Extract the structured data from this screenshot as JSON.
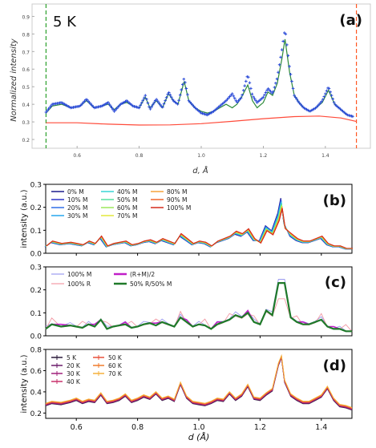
{
  "chart_data": [
    {
      "id": "a",
      "type": "scatter+line",
      "panel_label": "(a)",
      "annotation": "5 K",
      "xlabel": "d, Å",
      "ylabel": "Normalized intensity",
      "xlim": [
        0.455,
        1.545
      ],
      "ylim": [
        0.15,
        0.97
      ],
      "xticks": [
        0.6,
        0.8,
        1.0,
        1.2,
        1.4
      ],
      "xtick_labels": [
        "0.6",
        "0.8",
        "1.0",
        "1.2",
        "1.4"
      ],
      "yticks": [
        0.2,
        0.3,
        0.4,
        0.5,
        0.6,
        0.7,
        0.8,
        0.9
      ],
      "ytick_labels": [
        "0.2",
        "0.3",
        "0.4",
        "0.5",
        "0.6",
        "0.7",
        "0.8",
        "0.9"
      ],
      "vlines": [
        {
          "x": 0.5,
          "color": "#2ca02c"
        },
        {
          "x": 1.5,
          "color": "#ff5722"
        }
      ],
      "series": [
        {
          "role": "observed",
          "color": "#2b4bd8",
          "style": "crosses",
          "points": [
            [
              0.5,
              0.355
            ],
            [
              0.52,
              0.4
            ],
            [
              0.55,
              0.41
            ],
            [
              0.58,
              0.38
            ],
            [
              0.61,
              0.39
            ],
            [
              0.63,
              0.43
            ],
            [
              0.655,
              0.38
            ],
            [
              0.68,
              0.39
            ],
            [
              0.7,
              0.41
            ],
            [
              0.72,
              0.36
            ],
            [
              0.74,
              0.4
            ],
            [
              0.76,
              0.42
            ],
            [
              0.78,
              0.39
            ],
            [
              0.8,
              0.38
            ],
            [
              0.82,
              0.45
            ],
            [
              0.835,
              0.37
            ],
            [
              0.855,
              0.43
            ],
            [
              0.875,
              0.38
            ],
            [
              0.895,
              0.47
            ],
            [
              0.91,
              0.42
            ],
            [
              0.925,
              0.4
            ],
            [
              0.945,
              0.55
            ],
            [
              0.96,
              0.42
            ],
            [
              0.98,
              0.38
            ],
            [
              1.0,
              0.35
            ],
            [
              1.02,
              0.34
            ],
            [
              1.04,
              0.36
            ],
            [
              1.06,
              0.39
            ],
            [
              1.08,
              0.42
            ],
            [
              1.1,
              0.46
            ],
            [
              1.115,
              0.41
            ],
            [
              1.13,
              0.44
            ],
            [
              1.15,
              0.57
            ],
            [
              1.165,
              0.45
            ],
            [
              1.18,
              0.41
            ],
            [
              1.2,
              0.44
            ],
            [
              1.215,
              0.49
            ],
            [
              1.23,
              0.46
            ],
            [
              1.245,
              0.55
            ],
            [
              1.26,
              0.71
            ],
            [
              1.27,
              0.83
            ],
            [
              1.285,
              0.6
            ],
            [
              1.3,
              0.45
            ],
            [
              1.315,
              0.41
            ],
            [
              1.33,
              0.38
            ],
            [
              1.35,
              0.36
            ],
            [
              1.37,
              0.38
            ],
            [
              1.39,
              0.42
            ],
            [
              1.41,
              0.5
            ],
            [
              1.43,
              0.4
            ],
            [
              1.45,
              0.37
            ],
            [
              1.47,
              0.34
            ],
            [
              1.49,
              0.33
            ]
          ]
        },
        {
          "role": "fit",
          "color": "#2e8b3a",
          "style": "line",
          "points": [
            [
              0.5,
              0.35
            ],
            [
              0.52,
              0.39
            ],
            [
              0.55,
              0.4
            ],
            [
              0.58,
              0.38
            ],
            [
              0.61,
              0.39
            ],
            [
              0.63,
              0.42
            ],
            [
              0.655,
              0.38
            ],
            [
              0.68,
              0.39
            ],
            [
              0.7,
              0.4
            ],
            [
              0.72,
              0.37
            ],
            [
              0.74,
              0.4
            ],
            [
              0.76,
              0.41
            ],
            [
              0.78,
              0.39
            ],
            [
              0.8,
              0.38
            ],
            [
              0.82,
              0.44
            ],
            [
              0.835,
              0.38
            ],
            [
              0.855,
              0.42
            ],
            [
              0.875,
              0.38
            ],
            [
              0.895,
              0.46
            ],
            [
              0.91,
              0.42
            ],
            [
              0.925,
              0.4
            ],
            [
              0.945,
              0.53
            ],
            [
              0.96,
              0.42
            ],
            [
              0.98,
              0.38
            ],
            [
              1.0,
              0.36
            ],
            [
              1.02,
              0.35
            ],
            [
              1.04,
              0.36
            ],
            [
              1.06,
              0.38
            ],
            [
              1.08,
              0.4
            ],
            [
              1.1,
              0.38
            ],
            [
              1.115,
              0.4
            ],
            [
              1.13,
              0.44
            ],
            [
              1.15,
              0.51
            ],
            [
              1.165,
              0.42
            ],
            [
              1.18,
              0.38
            ],
            [
              1.2,
              0.41
            ],
            [
              1.215,
              0.47
            ],
            [
              1.23,
              0.45
            ],
            [
              1.245,
              0.52
            ],
            [
              1.26,
              0.66
            ],
            [
              1.27,
              0.77
            ],
            [
              1.285,
              0.58
            ],
            [
              1.3,
              0.45
            ],
            [
              1.315,
              0.41
            ],
            [
              1.33,
              0.38
            ],
            [
              1.35,
              0.36
            ],
            [
              1.37,
              0.38
            ],
            [
              1.39,
              0.41
            ],
            [
              1.41,
              0.48
            ],
            [
              1.43,
              0.4
            ],
            [
              1.45,
              0.37
            ],
            [
              1.47,
              0.34
            ],
            [
              1.49,
              0.33
            ]
          ]
        },
        {
          "role": "background",
          "color": "#ff4b3a",
          "style": "line",
          "points": [
            [
              0.5,
              0.295
            ],
            [
              0.6,
              0.295
            ],
            [
              0.7,
              0.287
            ],
            [
              0.8,
              0.282
            ],
            [
              0.9,
              0.283
            ],
            [
              1.0,
              0.29
            ],
            [
              1.1,
              0.303
            ],
            [
              1.2,
              0.318
            ],
            [
              1.3,
              0.33
            ],
            [
              1.38,
              0.333
            ],
            [
              1.45,
              0.322
            ],
            [
              1.5,
              0.302
            ]
          ]
        }
      ]
    },
    {
      "id": "b",
      "type": "line",
      "panel_label": "(b)",
      "ylabel": "intensity (a.u.)",
      "xlim": [
        0.5,
        1.5
      ],
      "ylim": [
        0.0,
        0.3
      ],
      "yticks": [
        0.0,
        0.1,
        0.2,
        0.3
      ],
      "ytick_labels": [
        "0.0",
        "0.1",
        "0.2",
        "0.3"
      ],
      "legend_position": "top-left",
      "legend": [
        {
          "label": "0% M",
          "color": "#1a1a8c"
        },
        {
          "label": "10% M",
          "color": "#2d34c8"
        },
        {
          "label": "20% M",
          "color": "#2f6fe8"
        },
        {
          "label": "30% M",
          "color": "#25a5ee"
        },
        {
          "label": "40% M",
          "color": "#38d4d4"
        },
        {
          "label": "50% M",
          "color": "#55e0a0"
        },
        {
          "label": "60% M",
          "color": "#9ae85a"
        },
        {
          "label": "70% M",
          "color": "#e3e93a"
        },
        {
          "label": "80% M",
          "color": "#f5a23a"
        },
        {
          "label": "90% M",
          "color": "#f0652a"
        },
        {
          "label": "100% M",
          "color": "#d42a1a"
        }
      ],
      "base_profile": [
        [
          0.5,
          0.03
        ],
        [
          0.52,
          0.05
        ],
        [
          0.55,
          0.04
        ],
        [
          0.58,
          0.045
        ],
        [
          0.6,
          0.04
        ],
        [
          0.62,
          0.035
        ],
        [
          0.64,
          0.05
        ],
        [
          0.66,
          0.04
        ],
        [
          0.68,
          0.07
        ],
        [
          0.7,
          0.03
        ],
        [
          0.72,
          0.04
        ],
        [
          0.74,
          0.045
        ],
        [
          0.76,
          0.05
        ],
        [
          0.78,
          0.035
        ],
        [
          0.8,
          0.04
        ],
        [
          0.82,
          0.05
        ],
        [
          0.84,
          0.055
        ],
        [
          0.86,
          0.045
        ],
        [
          0.88,
          0.06
        ],
        [
          0.9,
          0.05
        ],
        [
          0.92,
          0.04
        ],
        [
          0.94,
          0.08
        ],
        [
          0.96,
          0.06
        ],
        [
          0.98,
          0.04
        ],
        [
          1.0,
          0.05
        ],
        [
          1.02,
          0.045
        ],
        [
          1.04,
          0.03
        ],
        [
          1.06,
          0.05
        ],
        [
          1.08,
          0.06
        ],
        [
          1.1,
          0.07
        ],
        [
          1.12,
          0.09
        ],
        [
          1.14,
          0.08
        ],
        [
          1.16,
          0.1
        ],
        [
          1.18,
          0.06
        ],
        [
          1.2,
          0.05
        ],
        [
          1.22,
          0.11
        ],
        [
          1.24,
          0.09
        ],
        [
          1.26,
          0.16
        ],
        [
          1.27,
          0.22
        ],
        [
          1.28,
          0.12
        ],
        [
          1.3,
          0.08
        ],
        [
          1.32,
          0.06
        ],
        [
          1.34,
          0.05
        ],
        [
          1.36,
          0.05
        ],
        [
          1.38,
          0.06
        ],
        [
          1.4,
          0.07
        ],
        [
          1.42,
          0.04
        ],
        [
          1.44,
          0.03
        ],
        [
          1.46,
          0.03
        ],
        [
          1.48,
          0.02
        ],
        [
          1.5,
          0.02
        ]
      ],
      "peak_max_by_series": [
        0.24,
        0.235,
        0.23,
        0.225,
        0.22,
        0.215,
        0.21,
        0.205,
        0.2,
        0.2,
        0.195
      ]
    },
    {
      "id": "c",
      "type": "line",
      "panel_label": "(c)",
      "ylabel": "",
      "xlim": [
        0.5,
        1.5
      ],
      "ylim": [
        0.0,
        0.3
      ],
      "yticks": [
        0.0,
        0.1,
        0.2,
        0.3
      ],
      "ytick_labels": [
        "0.0",
        "0.1",
        "0.2",
        "0.3"
      ],
      "legend_position": "top-left",
      "legend": [
        {
          "label": "100% M",
          "color": "#9b9bf0"
        },
        {
          "label": "100% R",
          "color": "#f29aa5"
        },
        {
          "label": "(R+M)/2",
          "color": "#c01ec8"
        },
        {
          "label": "50% R/50% M",
          "color": "#1f7a2a"
        }
      ],
      "peak_max": 0.23
    },
    {
      "id": "d",
      "type": "line",
      "panel_label": "(d)",
      "xlabel": "d (Å)",
      "ylabel": "intensity (a.u.)",
      "xlim": [
        0.5,
        1.5
      ],
      "ylim": [
        0.15,
        0.8
      ],
      "xticks": [
        0.6,
        0.8,
        1.0,
        1.2,
        1.4
      ],
      "xtick_labels": [
        "0.6",
        "0.8",
        "1.0",
        "1.2",
        "1.4"
      ],
      "yticks": [
        0.2,
        0.4,
        0.6,
        0.8
      ],
      "ytick_labels": [
        "0.2",
        "0.4",
        "0.6",
        "0.8"
      ],
      "legend_position": "top-left",
      "legend": [
        {
          "label": "5 K",
          "color": "#2a1a3a"
        },
        {
          "label": "20 K",
          "color": "#6a1a6a"
        },
        {
          "label": "30 K",
          "color": "#a0207a"
        },
        {
          "label": "40 K",
          "color": "#c8306a"
        },
        {
          "label": "50 K",
          "color": "#e8503a"
        },
        {
          "label": "60 K",
          "color": "#f07a2a"
        },
        {
          "label": "70 K",
          "color": "#f5b03a"
        }
      ],
      "profile": [
        [
          0.5,
          0.28
        ],
        [
          0.52,
          0.3
        ],
        [
          0.55,
          0.29
        ],
        [
          0.58,
          0.31
        ],
        [
          0.6,
          0.33
        ],
        [
          0.62,
          0.3
        ],
        [
          0.64,
          0.32
        ],
        [
          0.66,
          0.31
        ],
        [
          0.68,
          0.38
        ],
        [
          0.7,
          0.3
        ],
        [
          0.72,
          0.31
        ],
        [
          0.74,
          0.33
        ],
        [
          0.76,
          0.37
        ],
        [
          0.78,
          0.31
        ],
        [
          0.8,
          0.33
        ],
        [
          0.82,
          0.36
        ],
        [
          0.84,
          0.34
        ],
        [
          0.86,
          0.39
        ],
        [
          0.88,
          0.33
        ],
        [
          0.9,
          0.35
        ],
        [
          0.92,
          0.32
        ],
        [
          0.94,
          0.48
        ],
        [
          0.96,
          0.35
        ],
        [
          0.98,
          0.3
        ],
        [
          1.0,
          0.29
        ],
        [
          1.02,
          0.28
        ],
        [
          1.04,
          0.3
        ],
        [
          1.06,
          0.33
        ],
        [
          1.08,
          0.32
        ],
        [
          1.1,
          0.39
        ],
        [
          1.12,
          0.33
        ],
        [
          1.14,
          0.37
        ],
        [
          1.16,
          0.46
        ],
        [
          1.18,
          0.34
        ],
        [
          1.2,
          0.33
        ],
        [
          1.22,
          0.38
        ],
        [
          1.24,
          0.42
        ],
        [
          1.26,
          0.66
        ],
        [
          1.27,
          0.73
        ],
        [
          1.28,
          0.5
        ],
        [
          1.3,
          0.37
        ],
        [
          1.32,
          0.33
        ],
        [
          1.34,
          0.3
        ],
        [
          1.36,
          0.3
        ],
        [
          1.38,
          0.33
        ],
        [
          1.4,
          0.36
        ],
        [
          1.42,
          0.44
        ],
        [
          1.44,
          0.33
        ],
        [
          1.46,
          0.27
        ],
        [
          1.48,
          0.26
        ],
        [
          1.5,
          0.24
        ]
      ]
    }
  ]
}
